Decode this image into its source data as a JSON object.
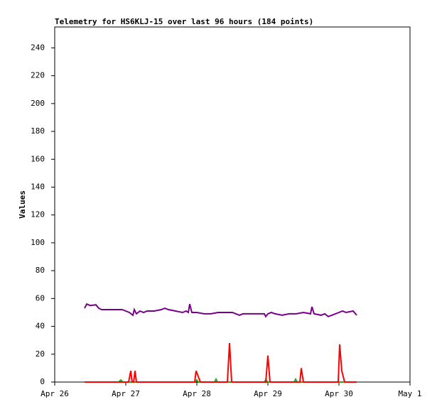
{
  "chart_data": {
    "type": "line",
    "title": "Telemetry for HS6KLJ-15 over last 96 hours (184 points)",
    "y_label": "Values",
    "xlim": [
      26,
      31
    ],
    "xticks": [
      {
        "value": 26,
        "label": "Apr 26"
      },
      {
        "value": 27,
        "label": "Apr 27"
      },
      {
        "value": 28,
        "label": "Apr 28"
      },
      {
        "value": 29,
        "label": "Apr 29"
      },
      {
        "value": 30,
        "label": "Apr 30"
      },
      {
        "value": 31,
        "label": "May 1"
      }
    ],
    "ylim": [
      0,
      255
    ],
    "yticks": [
      0,
      20,
      40,
      60,
      80,
      100,
      120,
      140,
      160,
      180,
      200,
      220,
      240
    ],
    "series": [
      {
        "color": "#000000",
        "x": [
          26.42,
          30.25
        ],
        "values": [
          0,
          0
        ]
      },
      {
        "color": "#22aa22",
        "x": [
          26.42,
          26.9,
          26.93,
          26.96,
          27.98,
          28.0,
          28.02,
          28.25,
          28.27,
          28.29,
          28.95,
          28.97,
          29.0,
          29.37,
          29.39,
          29.41,
          30.25
        ],
        "values": [
          0,
          0,
          1.5,
          0,
          0,
          1.5,
          0,
          0,
          2,
          0,
          0,
          1.5,
          0,
          0,
          2,
          0,
          0
        ]
      },
      {
        "color": "#ff0000",
        "x": [
          26.42,
          27.04,
          27.07,
          27.09,
          27.11,
          27.13,
          27.15,
          27.97,
          27.99,
          28.02,
          28.05,
          28.43,
          28.46,
          28.49,
          28.97,
          29.0,
          29.03,
          29.45,
          29.47,
          29.5,
          29.99,
          30.01,
          30.04,
          30.08,
          30.25
        ],
        "values": [
          0,
          0,
          8,
          0,
          0,
          8,
          0,
          0,
          8,
          4,
          0,
          0,
          28,
          0,
          0,
          19,
          0,
          0,
          10,
          0,
          0,
          27,
          8,
          0,
          0
        ]
      },
      {
        "color": "#770088",
        "x": [
          26.42,
          26.45,
          26.5,
          26.58,
          26.62,
          26.66,
          26.8,
          26.95,
          27.0,
          27.05,
          27.1,
          27.12,
          27.15,
          27.2,
          27.25,
          27.3,
          27.4,
          27.5,
          27.55,
          27.6,
          27.7,
          27.8,
          27.85,
          27.88,
          27.9,
          27.93,
          28.0,
          28.1,
          28.2,
          28.3,
          28.4,
          28.5,
          28.55,
          28.6,
          28.65,
          28.8,
          28.95,
          28.97,
          29.0,
          29.05,
          29.1,
          29.2,
          29.3,
          29.4,
          29.5,
          29.6,
          29.62,
          29.65,
          29.75,
          29.8,
          29.85,
          29.9,
          30.0,
          30.05,
          30.1,
          30.2,
          30.25
        ],
        "values": [
          53,
          56,
          55,
          55.5,
          53,
          52,
          52,
          52,
          51,
          50,
          48,
          52,
          49,
          51,
          50,
          51,
          51,
          52,
          53,
          52,
          51,
          50,
          51,
          50,
          56,
          50,
          50,
          49,
          49,
          50,
          50,
          50,
          49,
          48,
          49,
          49,
          49,
          47,
          49,
          50,
          49,
          48,
          49,
          49,
          50,
          49,
          54,
          49,
          48,
          49,
          47,
          48,
          50,
          51,
          50,
          51,
          48
        ]
      }
    ]
  }
}
